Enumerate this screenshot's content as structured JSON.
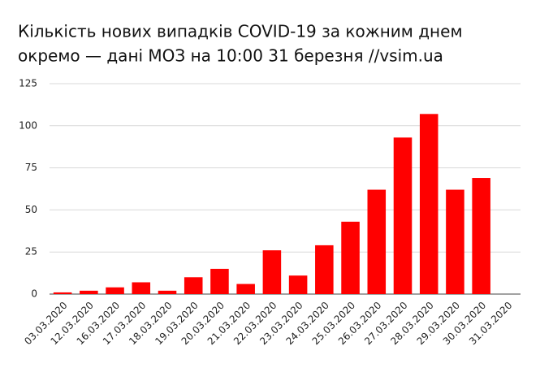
{
  "chart_data": {
    "type": "bar",
    "title": [
      "Кількість нових випадків COVID-19 за кожним днем",
      "окремо — дані МОЗ на 10:00 31 березня //vsim.ua"
    ],
    "categories": [
      "03.03.2020",
      "12.03.2020",
      "16.03.2020",
      "17.03.2020",
      "18.03.2020",
      "19.03.2020",
      "20.03.2020",
      "21.03.2020",
      "22.03.2020",
      "23.03.2020",
      "24.03.2020",
      "25.03.2020",
      "26.03.2020",
      "27.03.2020",
      "28.03.2020",
      "29.03.2020",
      "30.03.2020",
      "31.03.2020"
    ],
    "values": [
      1,
      2,
      4,
      7,
      2,
      10,
      15,
      6,
      26,
      11,
      29,
      43,
      62,
      93,
      107,
      62,
      69,
      null
    ],
    "color": "#ff0000",
    "ylim": [
      0,
      125
    ],
    "yticks": [
      0,
      25,
      50,
      75,
      100,
      125
    ],
    "grid": true
  }
}
